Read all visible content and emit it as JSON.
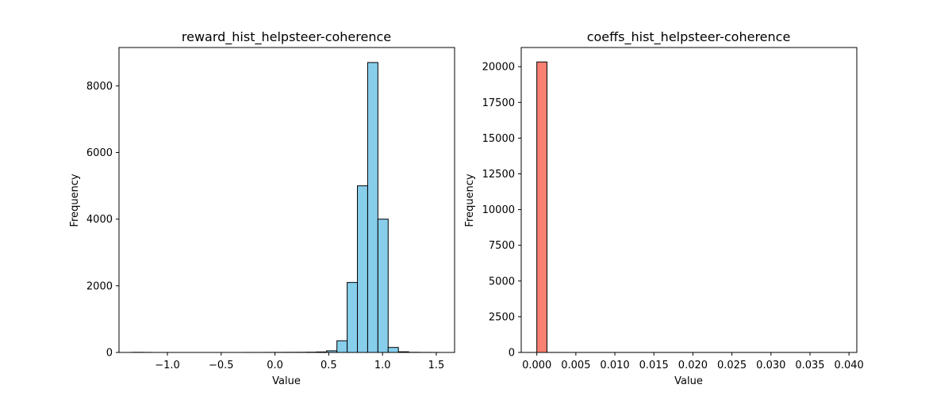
{
  "chart_data": [
    {
      "type": "bar",
      "title": "reward_hist_helpsteer-coherence",
      "xlabel": "Value",
      "ylabel": "Frequency",
      "xlim": [
        -1.45,
        1.67
      ],
      "ylim": [
        0,
        9150
      ],
      "xticks": [
        -1.0,
        -0.5,
        0.0,
        0.5,
        1.0,
        1.5
      ],
      "xtick_labels": [
        "−1.0",
        "−0.5",
        "0.0",
        "0.5",
        "1.0",
        "1.5"
      ],
      "yticks": [
        0,
        2000,
        4000,
        6000,
        8000
      ],
      "ytick_labels": [
        "0",
        "2000",
        "4000",
        "6000",
        "8000"
      ],
      "bar_color": "#87ceeb",
      "edge_color": "#000000",
      "bin_start": -1.33,
      "bin_width": 0.0953,
      "values": [
        4,
        2,
        0,
        0,
        0,
        0,
        0,
        0,
        0,
        0,
        0,
        1,
        1,
        2,
        3,
        4,
        5,
        8,
        15,
        50,
        350,
        2100,
        5000,
        8700,
        4000,
        150,
        20,
        5,
        2,
        1
      ]
    },
    {
      "type": "bar",
      "title": "coeffs_hist_helpsteer-coherence",
      "xlabel": "Value",
      "ylabel": "Frequency",
      "xlim": [
        -0.002,
        0.041
      ],
      "ylim": [
        0,
        21340
      ],
      "xticks": [
        0.0,
        0.005,
        0.01,
        0.015,
        0.02,
        0.025,
        0.03,
        0.035,
        0.04
      ],
      "xtick_labels": [
        "0.000",
        "0.005",
        "0.010",
        "0.015",
        "0.020",
        "0.025",
        "0.030",
        "0.035",
        "0.040"
      ],
      "yticks": [
        0,
        2500,
        5000,
        7500,
        10000,
        12500,
        15000,
        17500,
        20000
      ],
      "ytick_labels": [
        "0",
        "2500",
        "5000",
        "7500",
        "10000",
        "12500",
        "15000",
        "17500",
        "20000"
      ],
      "bar_color": "#fa8072",
      "edge_color": "#000000",
      "bin_start": 0.0,
      "bin_width": 0.0013,
      "values": [
        20330,
        3,
        1,
        1,
        1,
        1,
        1,
        1,
        1,
        1,
        1,
        1,
        1,
        1,
        1,
        1,
        1,
        1,
        1,
        1,
        1,
        1,
        1,
        1,
        1,
        1,
        1,
        1,
        1,
        1
      ]
    }
  ]
}
